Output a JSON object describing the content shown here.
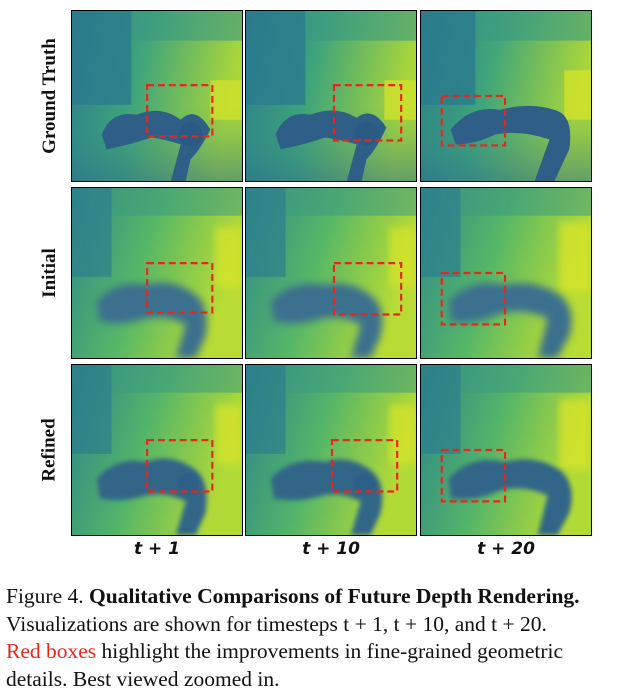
{
  "figure": {
    "row_labels": [
      "Ground Truth",
      "Initial",
      "Refined"
    ],
    "column_labels": [
      "t + 1",
      "t + 10",
      "t + 20"
    ],
    "colors": {
      "background_green": "#5dbb63",
      "far_yellow": "#c6e02e",
      "near_blue": "#2e6b8e",
      "robot_dark": "#2f5f87",
      "highlight_box": "#e8261c"
    },
    "panel_icon": "depth-map-image",
    "box_style": "dashed"
  },
  "caption": {
    "prefix": "Figure 4. ",
    "title": "Qualitative Comparisons of Future Depth Rendering.",
    "line2": "Visualizations are shown for timesteps t + 1, t + 10, and t + 20.",
    "red_text": "Red boxes",
    "line3_rest": " highlight the improvements in fine-grained geometric",
    "line4": "details. Best viewed zoomed in."
  }
}
